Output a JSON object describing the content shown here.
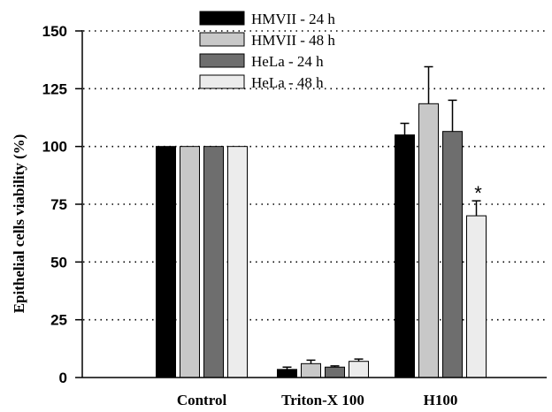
{
  "chart_data": {
    "type": "bar",
    "ylabel": "Epithelial cells viability (%)",
    "xlabel": "",
    "ylim": [
      0,
      150
    ],
    "yticks": [
      0,
      25,
      50,
      75,
      100,
      125,
      150
    ],
    "grid": "horizontal dotted",
    "legend_position": "top-center",
    "categories": [
      "Control",
      "Triton-X 100",
      "H100"
    ],
    "series": [
      {
        "name": "HMVII - 24 h",
        "color": "#000000",
        "values": [
          100,
          3.5,
          105
        ],
        "errors": [
          0,
          1,
          5
        ]
      },
      {
        "name": "HMVII - 48 h",
        "color": "#c8c8c8",
        "values": [
          100,
          6,
          118.5
        ],
        "errors": [
          0,
          1.5,
          16
        ]
      },
      {
        "name": "HeLa - 24 h",
        "color": "#6e6e6e",
        "values": [
          100,
          4.5,
          106.5
        ],
        "errors": [
          0,
          0.5,
          13.5
        ]
      },
      {
        "name": "HeLa - 48 h",
        "color": "#ececec",
        "values": [
          100,
          7,
          70
        ],
        "errors": [
          0,
          1,
          6.5
        ]
      }
    ],
    "annotations": [
      {
        "category": "H100",
        "series": "HeLa - 48 h",
        "text": "*"
      }
    ]
  }
}
